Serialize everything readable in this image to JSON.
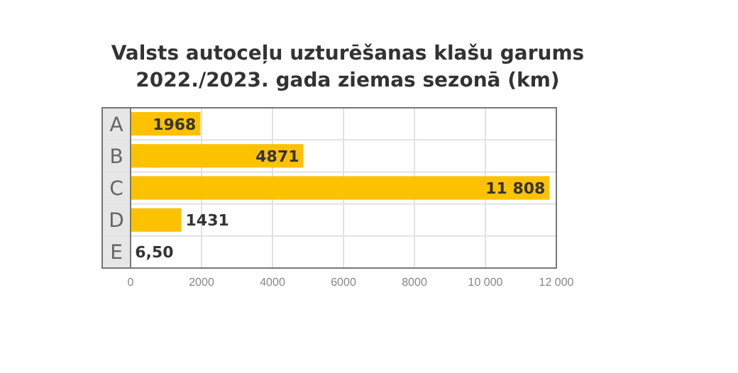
{
  "chart_data": {
    "type": "bar",
    "orientation": "horizontal",
    "title": "Valsts autoceļu uzturēšanas klašu garums\n2022./2023. gada ziemas sezonā (km)",
    "categories": [
      "A",
      "B",
      "C",
      "D",
      "E"
    ],
    "values": [
      1968,
      4871,
      11808,
      1431,
      6.5
    ],
    "value_labels": [
      "1968",
      "4871",
      "11 808",
      "1431",
      "6,50"
    ],
    "color": "#fcc200",
    "xlim": [
      0,
      12000
    ],
    "xticks": [
      0,
      2000,
      4000,
      6000,
      8000,
      {
        "value": 10000,
        "label": "10 000"
      },
      {
        "value": 12000,
        "label": "12 000"
      }
    ],
    "grid": true
  }
}
